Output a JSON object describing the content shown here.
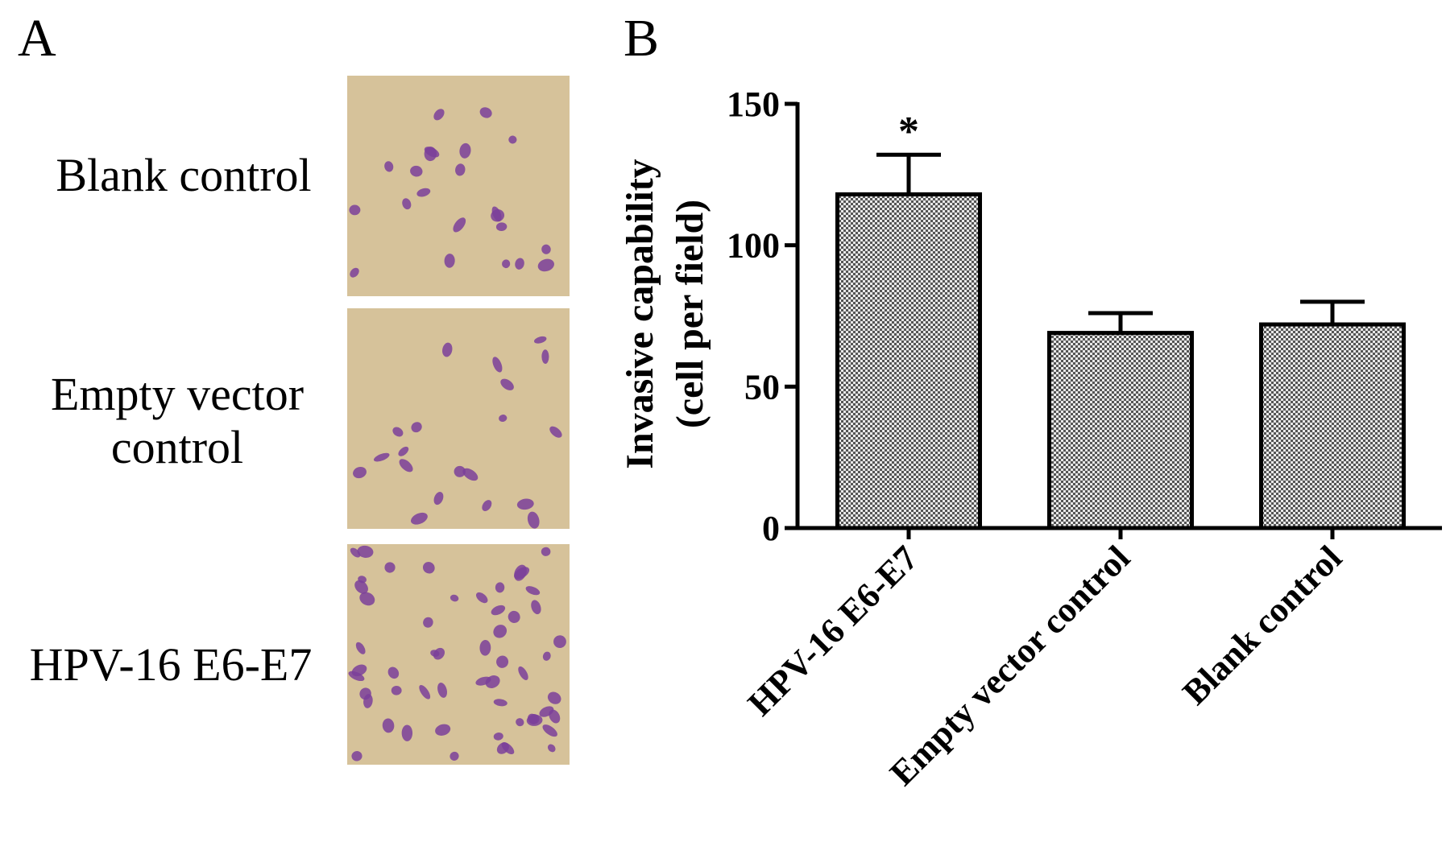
{
  "panel_labels": [
    "A",
    "B"
  ],
  "micrographs": [
    {
      "label": "Blank control"
    },
    {
      "label": "Empty vector control"
    },
    {
      "label": "HPV-16 E6-E7"
    }
  ],
  "chart_data": {
    "type": "bar",
    "y_label": [
      "Invasive capability",
      "(cell per field)"
    ],
    "categories": [
      "HPV-16 E6-E7",
      "Empty vector control",
      "Blank control"
    ],
    "values": [
      118,
      69,
      72
    ],
    "errors": [
      14,
      7,
      8
    ],
    "ylim": [
      0,
      150
    ],
    "yticks": [
      0,
      50,
      100,
      150
    ],
    "annotations": [
      {
        "text": "*",
        "x": "HPV-16 E6-E7"
      }
    ],
    "color": "#7f7f7f"
  }
}
